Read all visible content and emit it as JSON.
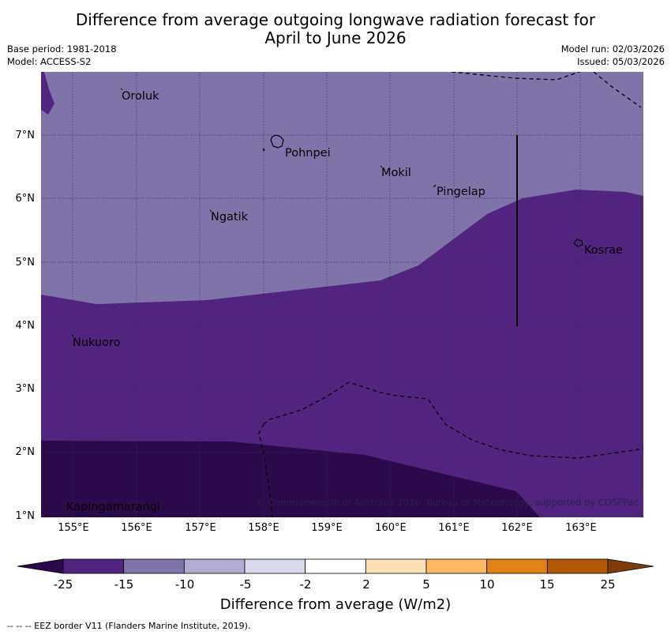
{
  "title_line1": "Difference from average outgoing longwave radiation forecast for",
  "title_line2": "April to June 2026",
  "base_period": "Base period: 1981-2018",
  "model": "Model: ACCESS-S2",
  "model_run": "Model run: 02/03/2026",
  "issued": "Issued: 05/03/2026",
  "lat_labels": [
    "7°N",
    "6°N",
    "5°N",
    "4°N",
    "3°N",
    "2°N",
    "1°N"
  ],
  "lon_labels": [
    "155°E",
    "156°E",
    "157°E",
    "158°E",
    "159°E",
    "160°E",
    "161°E",
    "162°E",
    "163°E"
  ],
  "places": [
    "Oroluk",
    "Pohnpei",
    "Mokil",
    "Pingelap",
    "Ngatik",
    "Kosrae",
    "Nukuoro",
    "Kapingamarangi"
  ],
  "copyright": "© Commonwealth of Australia 2026, Bureau of Meteorology, supported by COSPPac",
  "colorbar": {
    "ticks": [
      "-25",
      "-15",
      "-10",
      "-5",
      "-2",
      "2",
      "5",
      "10",
      "15",
      "25"
    ],
    "colors": [
      "#2b0a4b",
      "#51247f",
      "#8073aa",
      "#b2abd2",
      "#d8daeb",
      "#ffffff",
      "#fee0b6",
      "#fdb863",
      "#e08214",
      "#b35806",
      "#7f3b08"
    ],
    "label": "Difference from average (W/m2)"
  },
  "footnote": "--  --  -- EEZ border V11 (Flanders Marine Institute, 2019)."
}
